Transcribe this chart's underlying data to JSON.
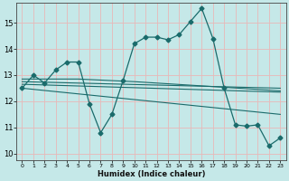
{
  "xlabel": "Humidex (Indice chaleur)",
  "ylabel": "",
  "xlim": [
    -0.5,
    23.5
  ],
  "ylim": [
    9.75,
    15.75
  ],
  "yticks": [
    10,
    11,
    12,
    13,
    14,
    15
  ],
  "xticks": [
    0,
    1,
    2,
    3,
    4,
    5,
    6,
    7,
    8,
    9,
    10,
    11,
    12,
    13,
    14,
    15,
    16,
    17,
    18,
    19,
    20,
    21,
    22,
    23
  ],
  "background_color": "#c5e8e8",
  "grid_color": "#e8b8b8",
  "line_color": "#1a6b6b",
  "main_line": {
    "x": [
      0,
      1,
      2,
      3,
      4,
      5,
      6,
      7,
      8,
      9,
      10,
      11,
      12,
      13,
      14,
      15,
      16,
      17,
      18,
      19,
      20,
      21,
      22,
      23
    ],
    "y": [
      12.5,
      13.0,
      12.7,
      13.2,
      13.5,
      13.5,
      11.9,
      10.8,
      11.5,
      12.8,
      14.2,
      14.45,
      14.45,
      14.35,
      14.55,
      15.05,
      15.55,
      14.4,
      12.5,
      11.1,
      11.05,
      11.1,
      10.3,
      10.6
    ],
    "marker": "D",
    "markersize": 2.5
  },
  "extra_lines": [
    {
      "x": [
        0,
        23
      ],
      "y": [
        12.75,
        12.5
      ]
    },
    {
      "x": [
        0,
        23
      ],
      "y": [
        12.65,
        12.35
      ]
    },
    {
      "x": [
        0,
        23
      ],
      "y": [
        12.5,
        11.5
      ]
    },
    {
      "x": [
        0,
        5,
        10,
        23
      ],
      "y": [
        12.85,
        12.85,
        12.75,
        12.4
      ]
    }
  ]
}
